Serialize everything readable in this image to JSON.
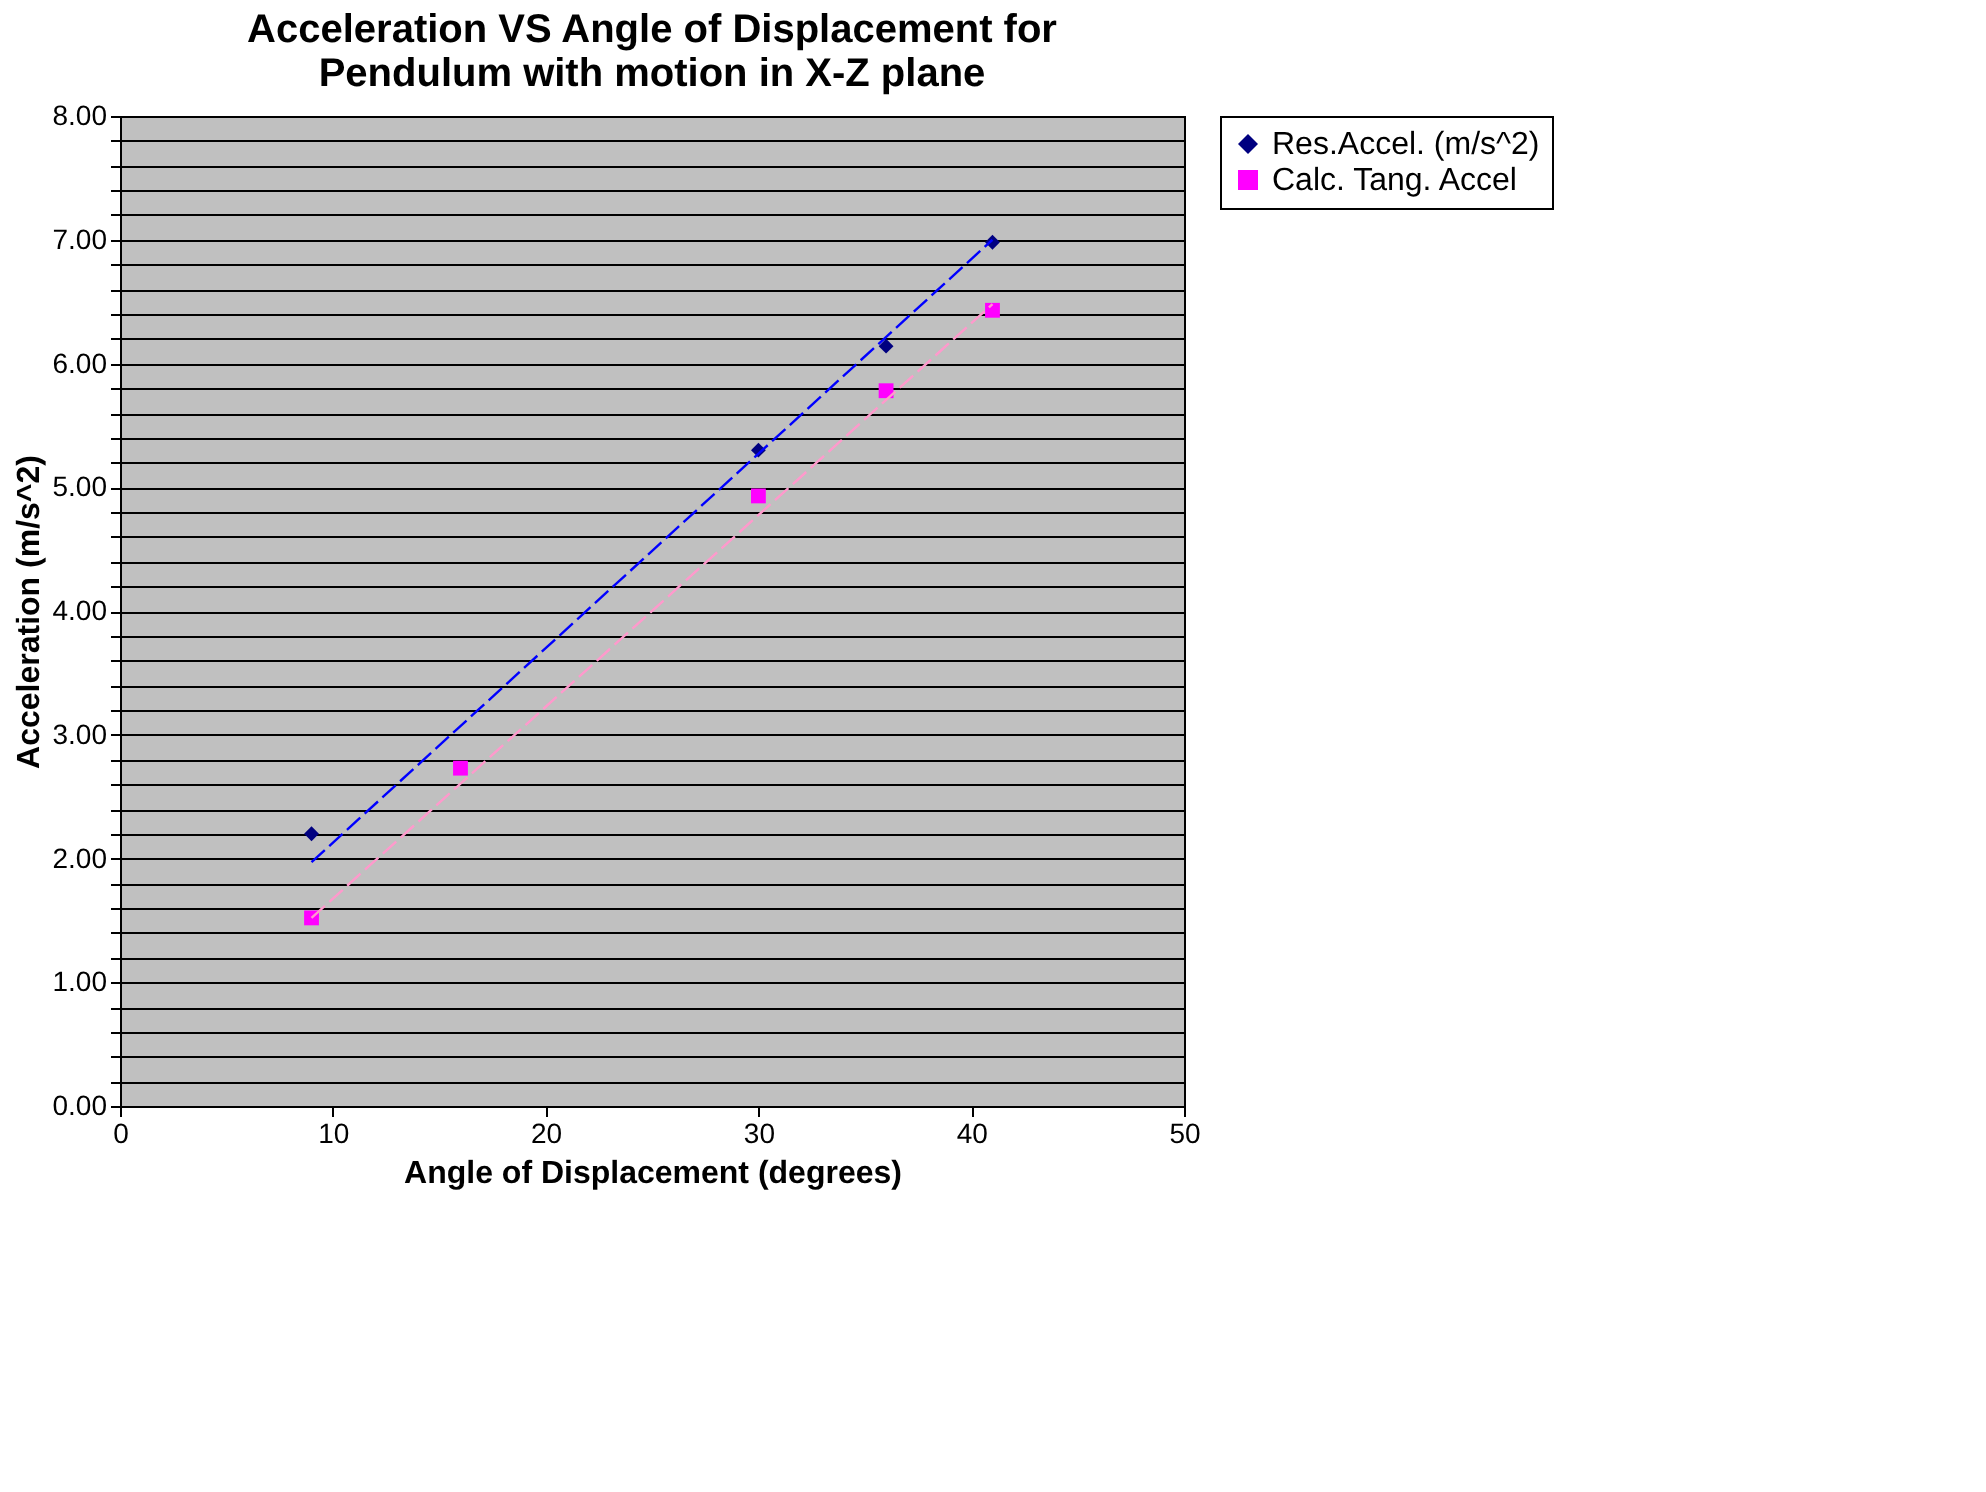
{
  "chart_data": {
    "type": "scatter",
    "title": "Acceleration VS Angle of Displacement for\nPendulum with motion in X-Z plane",
    "xlabel": "Angle of Displacement (degrees)",
    "ylabel": "Acceleration (m/s^2)",
    "xlim": [
      0,
      50
    ],
    "xticks": [
      0,
      10,
      20,
      30,
      40,
      50
    ],
    "ylim": [
      0,
      8
    ],
    "yticks": [
      {
        "value": 0,
        "label": "0.00"
      },
      {
        "value": 0.2,
        "label": null
      },
      {
        "value": 0.4,
        "label": null
      },
      {
        "value": 0.6,
        "label": null
      },
      {
        "value": 0.8,
        "label": null
      },
      {
        "value": 1,
        "label": "1.00"
      },
      {
        "value": 1.2,
        "label": null
      },
      {
        "value": 1.4,
        "label": null
      },
      {
        "value": 1.6,
        "label": null
      },
      {
        "value": 1.8,
        "label": null
      },
      {
        "value": 2,
        "label": "2.00"
      },
      {
        "value": 2.2,
        "label": null
      },
      {
        "value": 2.4,
        "label": null
      },
      {
        "value": 2.6,
        "label": null
      },
      {
        "value": 2.8,
        "label": null
      },
      {
        "value": 3,
        "label": "3.00"
      },
      {
        "value": 3.2,
        "label": null
      },
      {
        "value": 3.4,
        "label": null
      },
      {
        "value": 3.6,
        "label": null
      },
      {
        "value": 3.8,
        "label": null
      },
      {
        "value": 4,
        "label": "4.00"
      },
      {
        "value": 4.2,
        "label": null
      },
      {
        "value": 4.4,
        "label": null
      },
      {
        "value": 4.6,
        "label": null
      },
      {
        "value": 4.8,
        "label": null
      },
      {
        "value": 5,
        "label": "5.00"
      },
      {
        "value": 5.2,
        "label": null
      },
      {
        "value": 5.4,
        "label": null
      },
      {
        "value": 5.6,
        "label": null
      },
      {
        "value": 5.8,
        "label": null
      },
      {
        "value": 6,
        "label": "6.00"
      },
      {
        "value": 6.2,
        "label": null
      },
      {
        "value": 6.4,
        "label": null
      },
      {
        "value": 6.6,
        "label": null
      },
      {
        "value": 6.8,
        "label": null
      },
      {
        "value": 7,
        "label": "7.00"
      },
      {
        "value": 7.2,
        "label": null
      },
      {
        "value": 7.4,
        "label": null
      },
      {
        "value": 7.6,
        "label": null
      },
      {
        "value": 7.8,
        "label": null
      },
      {
        "value": 8,
        "label": "8.00"
      }
    ],
    "grid": "y",
    "legend": "right",
    "series": [
      {
        "name": "Res.Accel. (m/s^2)",
        "color": "#000080",
        "marker": "diamond",
        "x": [
          9,
          30,
          36,
          41
        ],
        "values": [
          2.2,
          5.3,
          6.14,
          6.98
        ]
      },
      {
        "name": "Calc. Tang. Accel",
        "color": "#ff00ff",
        "marker": "square",
        "x": [
          9,
          16,
          30,
          36,
          41
        ],
        "values": [
          1.52,
          2.73,
          4.93,
          5.78,
          6.43
        ]
      },
      {
        "type": "line",
        "color": "#0000ff",
        "line_style": "dashed",
        "x": [
          9,
          41
        ],
        "values": [
          1.97,
          7.0
        ]
      },
      {
        "type": "line",
        "color": "#ff99cc",
        "line_style": "dashed",
        "x": [
          9,
          41
        ],
        "values": [
          1.52,
          6.48
        ]
      }
    ]
  }
}
